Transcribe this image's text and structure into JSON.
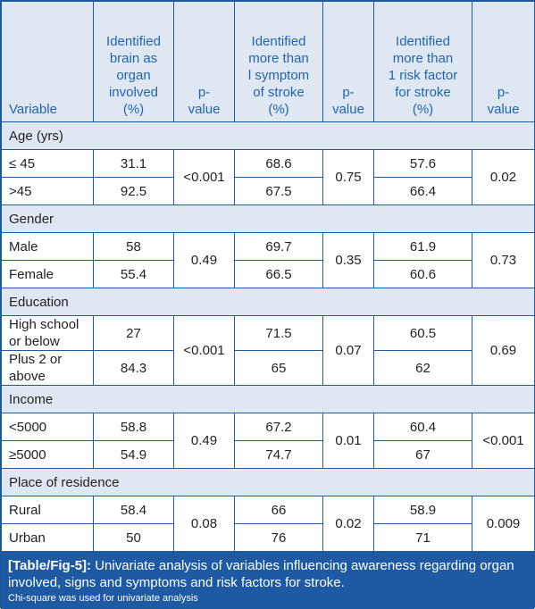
{
  "headers": {
    "variable": "Variable",
    "brain": [
      "Identified",
      "brain as",
      "organ",
      "involved",
      "(%)"
    ],
    "p1": [
      "p-",
      "value"
    ],
    "symptom": [
      "Identified",
      "more than",
      "l symptom",
      "of stroke",
      "(%)"
    ],
    "p2": [
      "p-",
      "value"
    ],
    "risk": [
      "Identified",
      "more than",
      "1 risk factor",
      "for stroke",
      "(%)"
    ],
    "p3": [
      "p-",
      "value"
    ]
  },
  "sections": [
    {
      "title": "Age (yrs)",
      "rows": [
        {
          "label": [
            "≤ 45"
          ],
          "brain": "31.1",
          "symptom": "68.6",
          "risk": "57.6"
        },
        {
          "label": [
            ">45"
          ],
          "brain": "92.5",
          "symptom": "67.5",
          "risk": "66.4"
        }
      ],
      "p1": "<0.001",
      "p2": "0.75",
      "p3": "0.02"
    },
    {
      "title": "Gender",
      "rows": [
        {
          "label": [
            "Male"
          ],
          "brain": "58",
          "symptom": "69.7",
          "risk": "61.9"
        },
        {
          "label": [
            "Female"
          ],
          "brain": "55.4",
          "symptom": "66.5",
          "risk": "60.6"
        }
      ],
      "p1": "0.49",
      "p2": "0.35",
      "p3": "0.73"
    },
    {
      "title": "Education",
      "rows": [
        {
          "label": [
            "High school",
            "or below"
          ],
          "brain": "27",
          "symptom": "71.5",
          "risk": "60.5"
        },
        {
          "label": [
            "Plus 2 or",
            "above"
          ],
          "brain": "84.3",
          "symptom": "65",
          "risk": "62"
        }
      ],
      "p1": "<0.001",
      "p2": "0.07",
      "p3": "0.69"
    },
    {
      "title": "Income",
      "rows": [
        {
          "label": [
            "<5000"
          ],
          "brain": "58.8",
          "symptom": "67.2",
          "risk": "60.4"
        },
        {
          "label": [
            "≥5000"
          ],
          "brain": "54.9",
          "symptom": "74.7",
          "risk": "67"
        }
      ],
      "p1": "0.49",
      "p2": "0.01",
      "p3": "<0.001"
    },
    {
      "title": "Place of residence",
      "rows": [
        {
          "label": [
            "Rural"
          ],
          "brain": "58.4",
          "symptom": "66",
          "risk": "58.9"
        },
        {
          "label": [
            "Urban"
          ],
          "brain": "50",
          "symptom": "76",
          "risk": "71"
        }
      ],
      "p1": "0.08",
      "p2": "0.02",
      "p3": "0.009"
    }
  ],
  "caption": {
    "fig": "[Table/Fig-5]:",
    "text": "Univariate analysis of variables influencing awareness regarding organ involved, signs and symptoms and risk factors for stroke.",
    "note": "Chi-square was used for univariate analysis"
  },
  "colors": {
    "header_bg": "#dfe7f2",
    "header_text": "#1f66b0",
    "border": "#1e5c9e",
    "caption_bg": "#1d5aa3"
  }
}
